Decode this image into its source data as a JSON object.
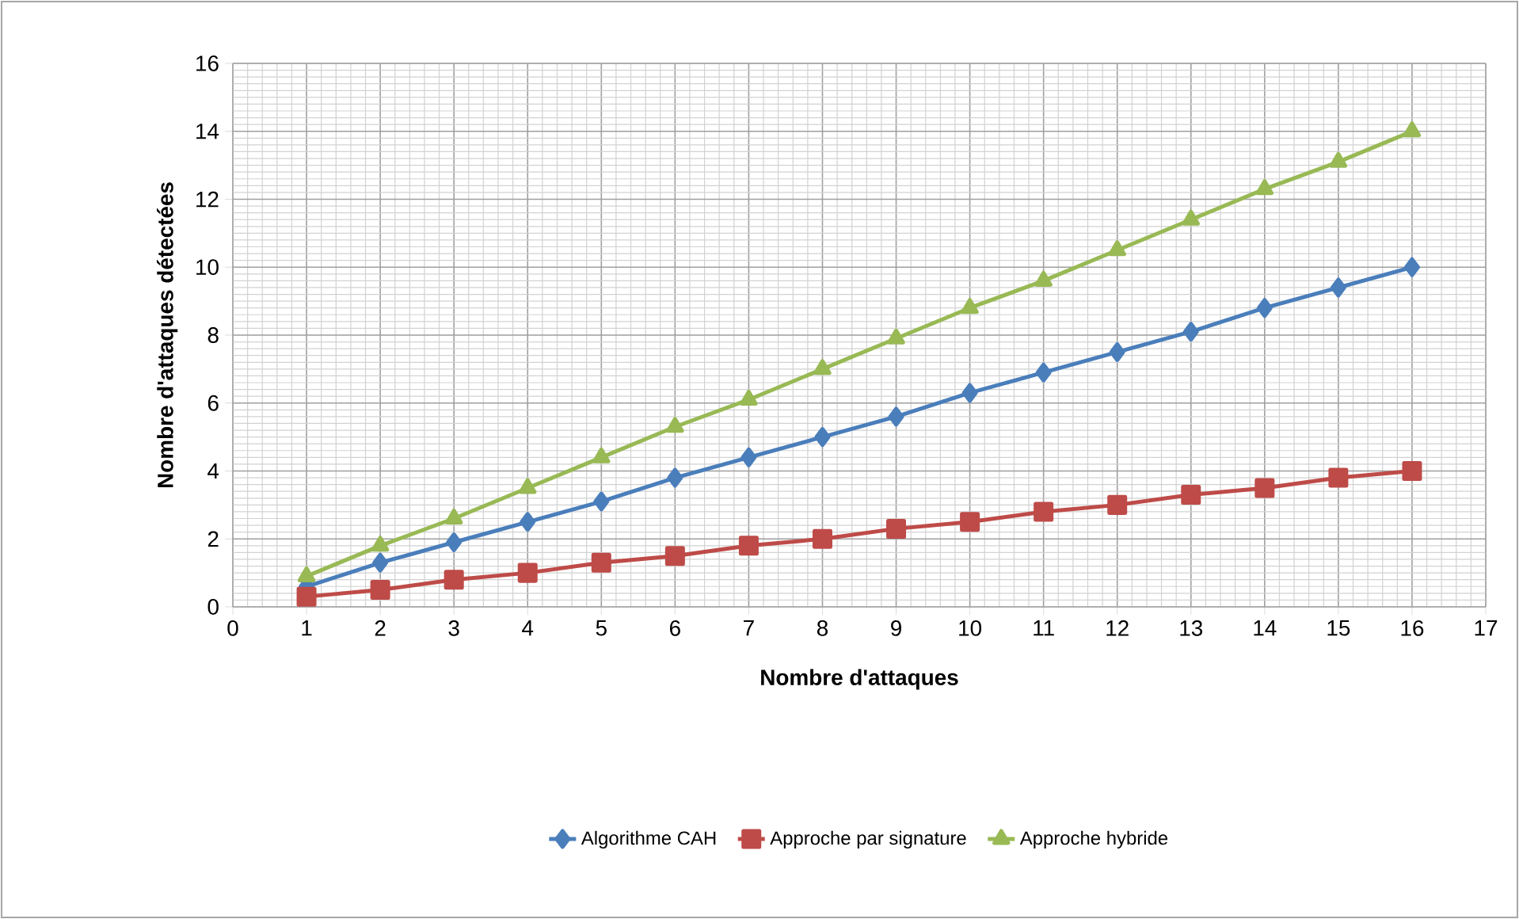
{
  "chart_data": {
    "type": "line",
    "xlabel": "Nombre d'attaques",
    "ylabel": "Nombre d'attaques détectées",
    "x": [
      1,
      2,
      3,
      4,
      5,
      6,
      7,
      8,
      9,
      10,
      11,
      12,
      13,
      14,
      15,
      16
    ],
    "series": [
      {
        "name": "Algorithme CAH",
        "color": "#4a7ebb",
        "marker": "diamond",
        "values": [
          0.6,
          1.3,
          1.9,
          2.5,
          3.1,
          3.8,
          4.4,
          5,
          5.6,
          6.3,
          6.9,
          7.5,
          8.1,
          8.8,
          9.4,
          10
        ]
      },
      {
        "name": "Approche par signature",
        "color": "#be4b48",
        "marker": "square",
        "values": [
          0.3,
          0.5,
          0.8,
          1,
          1.3,
          1.5,
          1.8,
          2,
          2.3,
          2.5,
          2.8,
          3,
          3.3,
          3.5,
          3.8,
          4
        ]
      },
      {
        "name": "Approche hybride",
        "color": "#98b954",
        "marker": "triangle",
        "values": [
          0.9,
          1.8,
          2.6,
          3.5,
          4.4,
          5.3,
          6.1,
          7,
          7.9,
          8.8,
          9.6,
          10.5,
          11.4,
          12.3,
          13.1,
          14
        ]
      }
    ],
    "xlim": [
      0,
      17
    ],
    "ylim": [
      0,
      16
    ],
    "xticks": [
      0,
      1,
      2,
      3,
      4,
      5,
      6,
      7,
      8,
      9,
      10,
      11,
      12,
      13,
      14,
      15,
      16,
      17
    ],
    "yticks": [
      0,
      2,
      4,
      6,
      8,
      10,
      12,
      14,
      16
    ],
    "grid": true,
    "legend": "bottom",
    "line_style": "solid"
  }
}
